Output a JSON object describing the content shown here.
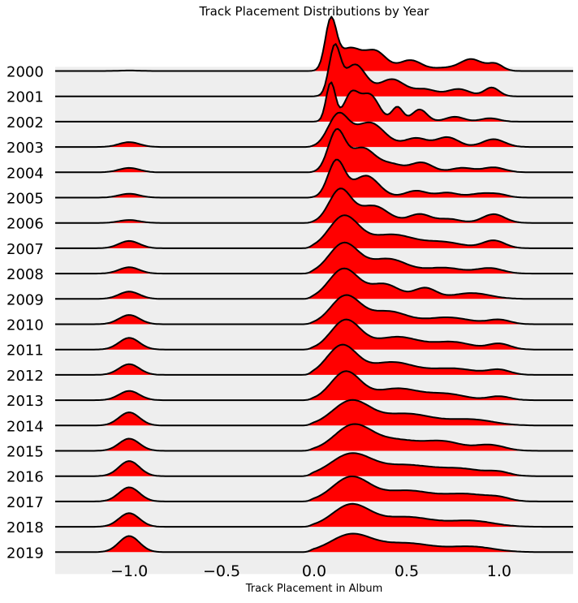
{
  "chart_data": {
    "type": "area",
    "subtype": "ridgeline",
    "title": "Track Placement Distributions by Year",
    "xlabel": "Track Placement in Album",
    "ylabel": "",
    "xlim": [
      -1.4,
      1.4
    ],
    "xticks": [
      -1.0,
      -0.5,
      0.0,
      0.5,
      1.0
    ],
    "xtick_labels": [
      "−1.0",
      "−0.5",
      "0.0",
      "0.5",
      "1.0"
    ],
    "colors": {
      "fill": "#ff0000",
      "line": "#000000",
      "background": "#eeeeee"
    },
    "legend": "none",
    "grid": false,
    "series": [
      {
        "name": "2000",
        "neg_amp": 0.01,
        "peaks": [
          [
            0.09,
            0.03,
            1.0
          ],
          [
            0.19,
            0.06,
            0.45
          ],
          [
            0.33,
            0.06,
            0.4
          ],
          [
            0.52,
            0.06,
            0.22
          ],
          [
            0.7,
            0.07,
            0.06
          ],
          [
            0.85,
            0.06,
            0.24
          ],
          [
            0.98,
            0.04,
            0.14
          ]
        ]
      },
      {
        "name": "2001",
        "neg_amp": 0.0,
        "peaks": [
          [
            0.11,
            0.03,
            0.95
          ],
          [
            0.22,
            0.06,
            0.65
          ],
          [
            0.42,
            0.07,
            0.35
          ],
          [
            0.6,
            0.06,
            0.14
          ],
          [
            0.78,
            0.06,
            0.15
          ],
          [
            0.96,
            0.04,
            0.18
          ]
        ]
      },
      {
        "name": "2002",
        "neg_amp": 0.0,
        "peaks": [
          [
            0.09,
            0.025,
            0.8
          ],
          [
            0.2,
            0.04,
            0.55
          ],
          [
            0.3,
            0.05,
            0.55
          ],
          [
            0.45,
            0.03,
            0.3
          ],
          [
            0.57,
            0.04,
            0.25
          ],
          [
            0.76,
            0.05,
            0.1
          ],
          [
            0.95,
            0.05,
            0.07
          ]
        ]
      },
      {
        "name": "2003",
        "neg_amp": 0.1,
        "peaks": [
          [
            0.13,
            0.055,
            0.65
          ],
          [
            0.3,
            0.08,
            0.5
          ],
          [
            0.55,
            0.06,
            0.18
          ],
          [
            0.72,
            0.06,
            0.2
          ],
          [
            0.97,
            0.06,
            0.16
          ]
        ]
      },
      {
        "name": "2004",
        "neg_amp": 0.09,
        "peaks": [
          [
            0.12,
            0.045,
            0.82
          ],
          [
            0.26,
            0.07,
            0.5
          ],
          [
            0.42,
            0.06,
            0.15
          ],
          [
            0.58,
            0.06,
            0.2
          ],
          [
            0.8,
            0.06,
            0.09
          ],
          [
            0.97,
            0.06,
            0.1
          ]
        ]
      },
      {
        "name": "2005",
        "neg_amp": 0.08,
        "peaks": [
          [
            0.12,
            0.045,
            0.75
          ],
          [
            0.28,
            0.07,
            0.45
          ],
          [
            0.55,
            0.06,
            0.14
          ],
          [
            0.72,
            0.06,
            0.1
          ],
          [
            0.9,
            0.06,
            0.08
          ],
          [
            1.0,
            0.05,
            0.06
          ]
        ]
      },
      {
        "name": "2006",
        "neg_amp": 0.06,
        "peaks": [
          [
            0.14,
            0.06,
            0.68
          ],
          [
            0.32,
            0.08,
            0.35
          ],
          [
            0.57,
            0.06,
            0.18
          ],
          [
            0.73,
            0.06,
            0.08
          ],
          [
            0.97,
            0.06,
            0.18
          ]
        ]
      },
      {
        "name": "2007",
        "neg_amp": 0.15,
        "peaks": [
          [
            0.16,
            0.08,
            0.65
          ],
          [
            0.42,
            0.12,
            0.28
          ],
          [
            0.7,
            0.1,
            0.12
          ],
          [
            0.97,
            0.06,
            0.16
          ]
        ]
      },
      {
        "name": "2008",
        "neg_amp": 0.13,
        "peaks": [
          [
            0.16,
            0.08,
            0.62
          ],
          [
            0.4,
            0.1,
            0.3
          ],
          [
            0.7,
            0.1,
            0.12
          ],
          [
            0.95,
            0.07,
            0.11
          ]
        ]
      },
      {
        "name": "2009",
        "neg_amp": 0.15,
        "peaks": [
          [
            0.16,
            0.08,
            0.62
          ],
          [
            0.38,
            0.08,
            0.3
          ],
          [
            0.6,
            0.06,
            0.22
          ],
          [
            0.85,
            0.1,
            0.12
          ]
        ]
      },
      {
        "name": "2010",
        "neg_amp": 0.19,
        "peaks": [
          [
            0.17,
            0.08,
            0.58
          ],
          [
            0.4,
            0.1,
            0.26
          ],
          [
            0.72,
            0.12,
            0.14
          ],
          [
            1.0,
            0.06,
            0.09
          ]
        ]
      },
      {
        "name": "2011",
        "neg_amp": 0.24,
        "peaks": [
          [
            0.17,
            0.08,
            0.6
          ],
          [
            0.45,
            0.12,
            0.26
          ],
          [
            0.75,
            0.1,
            0.15
          ],
          [
            1.0,
            0.06,
            0.12
          ]
        ]
      },
      {
        "name": "2012",
        "neg_amp": 0.22,
        "peaks": [
          [
            0.15,
            0.08,
            0.6
          ],
          [
            0.42,
            0.12,
            0.26
          ],
          [
            0.75,
            0.12,
            0.13
          ],
          [
            1.0,
            0.06,
            0.1
          ]
        ]
      },
      {
        "name": "2013",
        "neg_amp": 0.19,
        "peaks": [
          [
            0.17,
            0.08,
            0.58
          ],
          [
            0.45,
            0.12,
            0.24
          ],
          [
            0.72,
            0.1,
            0.12
          ],
          [
            1.0,
            0.06,
            0.08
          ]
        ]
      },
      {
        "name": "2014",
        "neg_amp": 0.27,
        "peaks": [
          [
            0.2,
            0.1,
            0.5
          ],
          [
            0.5,
            0.14,
            0.24
          ],
          [
            0.85,
            0.12,
            0.12
          ]
        ]
      },
      {
        "name": "2015",
        "neg_amp": 0.25,
        "peaks": [
          [
            0.21,
            0.1,
            0.52
          ],
          [
            0.45,
            0.12,
            0.21
          ],
          [
            0.7,
            0.1,
            0.18
          ],
          [
            0.95,
            0.08,
            0.12
          ]
        ]
      },
      {
        "name": "2016",
        "neg_amp": 0.31,
        "peaks": [
          [
            0.2,
            0.11,
            0.45
          ],
          [
            0.5,
            0.14,
            0.22
          ],
          [
            0.8,
            0.12,
            0.14
          ],
          [
            1.0,
            0.06,
            0.07
          ]
        ]
      },
      {
        "name": "2017",
        "neg_amp": 0.29,
        "peaks": [
          [
            0.2,
            0.1,
            0.5
          ],
          [
            0.5,
            0.13,
            0.22
          ],
          [
            0.82,
            0.12,
            0.15
          ],
          [
            1.0,
            0.06,
            0.06
          ]
        ]
      },
      {
        "name": "2018",
        "neg_amp": 0.28,
        "peaks": [
          [
            0.2,
            0.1,
            0.45
          ],
          [
            0.5,
            0.14,
            0.2
          ],
          [
            0.85,
            0.12,
            0.12
          ]
        ]
      },
      {
        "name": "2019",
        "neg_amp": 0.33,
        "peaks": [
          [
            0.2,
            0.11,
            0.36
          ],
          [
            0.5,
            0.14,
            0.18
          ],
          [
            0.85,
            0.12,
            0.11
          ]
        ]
      }
    ]
  }
}
